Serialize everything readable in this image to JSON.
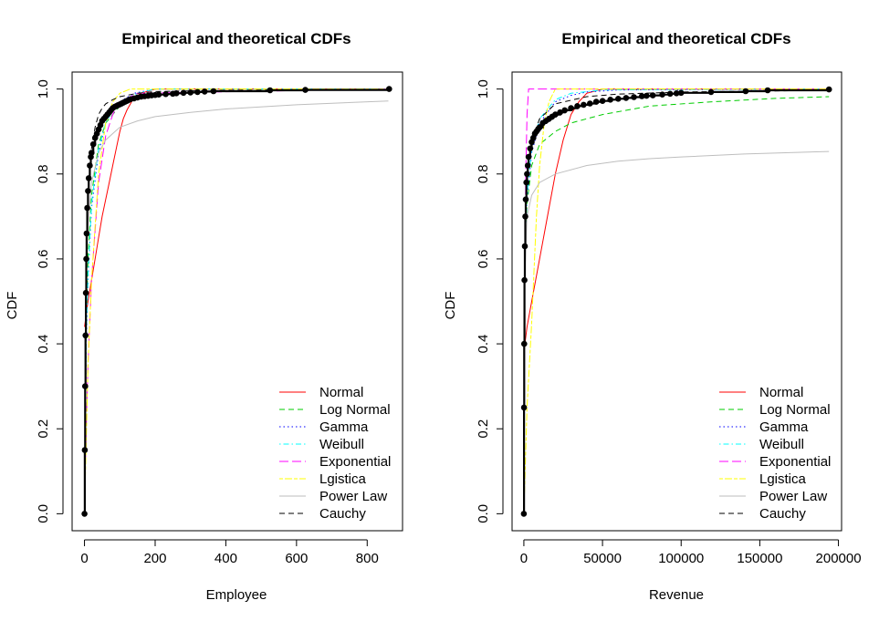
{
  "chart_data": [
    {
      "type": "line",
      "title": "Empirical and theoretical CDFs",
      "xlabel": "Employee",
      "ylabel": "CDF",
      "xlim": [
        -35,
        900
      ],
      "ylim": [
        -0.04,
        1.04
      ],
      "xticks": [
        0,
        200,
        400,
        600,
        800
      ],
      "xtick_labels": [
        "0",
        "200",
        "400",
        "600",
        "800"
      ],
      "yticks": [
        0.0,
        0.2,
        0.4,
        0.6,
        0.8,
        1.0
      ],
      "ytick_labels": [
        "0.0",
        "0.2",
        "0.4",
        "0.6",
        "0.8",
        "1.0"
      ],
      "grid": false,
      "legend_position": "bottom-right",
      "series": [
        {
          "name": "Normal",
          "color": "#FF0000",
          "dash": "solid",
          "x": [
            0,
            10,
            20,
            30,
            40,
            50,
            60,
            70,
            80,
            90,
            100,
            110,
            120,
            140,
            160,
            200,
            860
          ],
          "y": [
            0.44,
            0.5,
            0.55,
            0.6,
            0.65,
            0.7,
            0.74,
            0.78,
            0.82,
            0.86,
            0.9,
            0.93,
            0.95,
            0.98,
            0.99,
            1.0,
            1.0
          ]
        },
        {
          "name": "Log Normal",
          "color": "#00CC00",
          "dash": "dashed",
          "x": [
            0,
            5,
            10,
            20,
            40,
            60,
            100,
            160,
            250,
            400,
            600,
            860
          ],
          "y": [
            0.0,
            0.45,
            0.6,
            0.75,
            0.87,
            0.92,
            0.96,
            0.98,
            0.99,
            0.995,
            0.998,
            1.0
          ]
        },
        {
          "name": "Gamma",
          "color": "#0000FF",
          "dash": "dotted",
          "x": [
            0,
            5,
            10,
            20,
            40,
            60,
            80,
            100,
            140,
            200,
            860
          ],
          "y": [
            0.0,
            0.4,
            0.55,
            0.72,
            0.85,
            0.92,
            0.95,
            0.97,
            0.99,
            1.0,
            1.0
          ]
        },
        {
          "name": "Weibull",
          "color": "#00FFFF",
          "dash": "dotdash",
          "x": [
            0,
            5,
            10,
            20,
            40,
            60,
            80,
            100,
            150,
            200,
            860
          ],
          "y": [
            0.0,
            0.42,
            0.56,
            0.73,
            0.86,
            0.92,
            0.95,
            0.97,
            0.99,
            1.0,
            1.0
          ]
        },
        {
          "name": "Exponential",
          "color": "#FF00FF",
          "dash": "longdash",
          "x": [
            0,
            5,
            10,
            20,
            40,
            60,
            80,
            100,
            150,
            860
          ],
          "y": [
            0.0,
            0.2,
            0.35,
            0.55,
            0.78,
            0.89,
            0.94,
            0.97,
            0.99,
            1.0
          ]
        },
        {
          "name": "Lgistica",
          "color": "#FFFF00",
          "dash": "twodash",
          "x": [
            0,
            10,
            20,
            40,
            60,
            80,
            100,
            130,
            860
          ],
          "y": [
            0.0,
            0.35,
            0.55,
            0.8,
            0.92,
            0.97,
            0.99,
            1.0,
            1.0
          ]
        },
        {
          "name": "Power Law",
          "color": "#BEBEBE",
          "dash": "solid",
          "x": [
            0,
            5,
            10,
            20,
            40,
            60,
            100,
            150,
            200,
            300,
            400,
            600,
            860
          ],
          "y": [
            0.0,
            0.55,
            0.68,
            0.78,
            0.85,
            0.88,
            0.91,
            0.925,
            0.935,
            0.945,
            0.953,
            0.963,
            0.972
          ]
        },
        {
          "name": "Cauchy",
          "color": "#000000",
          "dash": "dashed",
          "x": [
            0,
            5,
            10,
            20,
            30,
            40,
            50,
            60,
            80,
            100,
            150,
            200,
            400,
            860
          ],
          "y": [
            0.0,
            0.62,
            0.76,
            0.86,
            0.91,
            0.94,
            0.955,
            0.965,
            0.975,
            0.982,
            0.99,
            0.994,
            0.997,
            0.999
          ]
        }
      ],
      "legend_items": [
        {
          "label": "Normal",
          "color": "#FF0000",
          "dash": "solid"
        },
        {
          "label": "Log Normal",
          "color": "#00CC00",
          "dash": "dashed"
        },
        {
          "label": "Gamma",
          "color": "#0000FF",
          "dash": "dotted"
        },
        {
          "label": "Weibull",
          "color": "#00FFFF",
          "dash": "dotdash"
        },
        {
          "label": "Exponential",
          "color": "#FF00FF",
          "dash": "longdash"
        },
        {
          "label": "Lgistica",
          "color": "#FFFF00",
          "dash": "twodash"
        },
        {
          "label": "Power Law",
          "color": "#BEBEBE",
          "dash": "solid"
        },
        {
          "label": "Cauchy",
          "color": "#000000",
          "dash": "dashed"
        }
      ],
      "empirical": {
        "x": [
          0,
          1,
          2,
          3,
          4,
          5,
          6,
          8,
          10,
          12,
          15,
          18,
          20,
          25,
          30,
          35,
          40,
          45,
          50,
          55,
          60,
          65,
          70,
          75,
          80,
          85,
          90,
          95,
          100,
          105,
          110,
          115,
          120,
          125,
          130,
          140,
          150,
          160,
          170,
          180,
          190,
          200,
          210,
          230,
          250,
          260,
          280,
          300,
          320,
          340,
          365,
          525,
          625,
          862
        ],
        "y": [
          0.0,
          0.15,
          0.3,
          0.42,
          0.52,
          0.6,
          0.66,
          0.72,
          0.76,
          0.79,
          0.82,
          0.84,
          0.85,
          0.87,
          0.885,
          0.895,
          0.905,
          0.915,
          0.925,
          0.93,
          0.935,
          0.94,
          0.945,
          0.95,
          0.955,
          0.958,
          0.96,
          0.962,
          0.964,
          0.966,
          0.968,
          0.97,
          0.972,
          0.974,
          0.976,
          0.978,
          0.98,
          0.982,
          0.983,
          0.984,
          0.985,
          0.986,
          0.987,
          0.988,
          0.989,
          0.99,
          0.991,
          0.992,
          0.993,
          0.994,
          0.995,
          0.997,
          0.998,
          1.0
        ]
      }
    },
    {
      "type": "line",
      "title": "Empirical and theoretical CDFs",
      "xlabel": "Revenue",
      "ylabel": "CDF",
      "xlim": [
        -7500,
        202000
      ],
      "ylim": [
        -0.04,
        1.04
      ],
      "xticks": [
        0,
        50000,
        100000,
        150000,
        200000
      ],
      "xtick_labels": [
        "0",
        "50000",
        "100000",
        "150000",
        "200000"
      ],
      "yticks": [
        0.0,
        0.2,
        0.4,
        0.6,
        0.8,
        1.0
      ],
      "ytick_labels": [
        "0.0",
        "0.2",
        "0.4",
        "0.6",
        "0.8",
        "1.0"
      ],
      "grid": false,
      "legend_position": "bottom-right",
      "series": [
        {
          "name": "Normal",
          "color": "#FF0000",
          "dash": "solid",
          "x": [
            0,
            2000,
            5000,
            8000,
            12000,
            16000,
            20000,
            25000,
            30000,
            35000,
            40000,
            50000,
            194000
          ],
          "y": [
            0.38,
            0.44,
            0.5,
            0.56,
            0.64,
            0.72,
            0.8,
            0.88,
            0.94,
            0.97,
            0.99,
            1.0,
            1.0
          ]
        },
        {
          "name": "Log Normal",
          "color": "#00CC00",
          "dash": "dashed",
          "x": [
            0,
            500,
            1000,
            2000,
            5000,
            10000,
            20000,
            30000,
            50000,
            80000,
            120000,
            160000,
            194000
          ],
          "y": [
            0.0,
            0.55,
            0.65,
            0.73,
            0.82,
            0.87,
            0.9,
            0.92,
            0.94,
            0.96,
            0.97,
            0.978,
            0.982
          ]
        },
        {
          "name": "Gamma",
          "color": "#0000FF",
          "dash": "dotted",
          "x": [
            0,
            500,
            1000,
            2000,
            5000,
            10000,
            20000,
            30000,
            40000,
            60000,
            194000
          ],
          "y": [
            0.0,
            0.55,
            0.65,
            0.74,
            0.85,
            0.92,
            0.97,
            0.985,
            0.993,
            0.998,
            1.0
          ]
        },
        {
          "name": "Weibull",
          "color": "#00FFFF",
          "dash": "dotdash",
          "x": [
            0,
            500,
            1000,
            2000,
            5000,
            10000,
            20000,
            30000,
            50000,
            194000
          ],
          "y": [
            0.0,
            0.56,
            0.66,
            0.75,
            0.86,
            0.93,
            0.975,
            0.99,
            0.998,
            1.0
          ]
        },
        {
          "name": "Exponential",
          "color": "#FF00FF",
          "dash": "longdash",
          "x": [
            0,
            300,
            700,
            1200,
            2000,
            3000,
            194000
          ],
          "y": [
            0.0,
            0.3,
            0.6,
            0.8,
            0.94,
            1.0,
            1.0
          ]
        },
        {
          "name": "Lgistica",
          "color": "#FFFF00",
          "dash": "twodash",
          "x": [
            0,
            2000,
            5000,
            8000,
            10000,
            13000,
            16000,
            20000,
            194000
          ],
          "y": [
            0.0,
            0.25,
            0.45,
            0.7,
            0.82,
            0.92,
            0.97,
            1.0,
            1.0
          ]
        },
        {
          "name": "Power Law",
          "color": "#BEBEBE",
          "dash": "solid",
          "x": [
            0,
            500,
            2000,
            5000,
            10000,
            20000,
            40000,
            60000,
            80000,
            100000,
            140000,
            194000
          ],
          "y": [
            0.0,
            0.55,
            0.7,
            0.75,
            0.78,
            0.8,
            0.82,
            0.83,
            0.836,
            0.84,
            0.847,
            0.853
          ]
        },
        {
          "name": "Cauchy",
          "color": "#000000",
          "dash": "dashed",
          "x": [
            0,
            500,
            1000,
            2000,
            5000,
            10000,
            20000,
            40000,
            60000,
            100000,
            194000
          ],
          "y": [
            0.0,
            0.6,
            0.72,
            0.8,
            0.88,
            0.93,
            0.965,
            0.982,
            0.988,
            0.993,
            0.997
          ]
        }
      ],
      "legend_items": [
        {
          "label": "Normal",
          "color": "#FF0000",
          "dash": "solid"
        },
        {
          "label": "Log Normal",
          "color": "#00CC00",
          "dash": "dashed"
        },
        {
          "label": "Gamma",
          "color": "#0000FF",
          "dash": "dotted"
        },
        {
          "label": "Weibull",
          "color": "#00FFFF",
          "dash": "dotdash"
        },
        {
          "label": "Exponential",
          "color": "#FF00FF",
          "dash": "longdash"
        },
        {
          "label": "Lgistica",
          "color": "#FFFF00",
          "dash": "twodash"
        },
        {
          "label": "Power Law",
          "color": "#BEBEBE",
          "dash": "solid"
        },
        {
          "label": "Cauchy",
          "color": "#000000",
          "dash": "dashed"
        }
      ],
      "empirical": {
        "x": [
          0,
          100,
          200,
          400,
          600,
          900,
          1200,
          1600,
          2000,
          2500,
          3000,
          4000,
          5000,
          6000,
          7000,
          8000,
          9000,
          10000,
          12000,
          14000,
          16000,
          18000,
          20000,
          23000,
          26000,
          30000,
          34000,
          38000,
          42000,
          46000,
          50000,
          55000,
          60000,
          65000,
          70000,
          75000,
          78000,
          82000,
          88000,
          93000,
          97000,
          100000,
          119000,
          141000,
          155000,
          194000
        ],
        "y": [
          0.0,
          0.25,
          0.4,
          0.55,
          0.63,
          0.7,
          0.74,
          0.78,
          0.8,
          0.82,
          0.84,
          0.86,
          0.875,
          0.885,
          0.895,
          0.9,
          0.905,
          0.91,
          0.92,
          0.925,
          0.93,
          0.935,
          0.94,
          0.945,
          0.95,
          0.955,
          0.96,
          0.963,
          0.966,
          0.97,
          0.972,
          0.975,
          0.977,
          0.979,
          0.981,
          0.983,
          0.984,
          0.985,
          0.987,
          0.989,
          0.99,
          0.991,
          0.993,
          0.995,
          0.997,
          0.999
        ]
      }
    }
  ]
}
